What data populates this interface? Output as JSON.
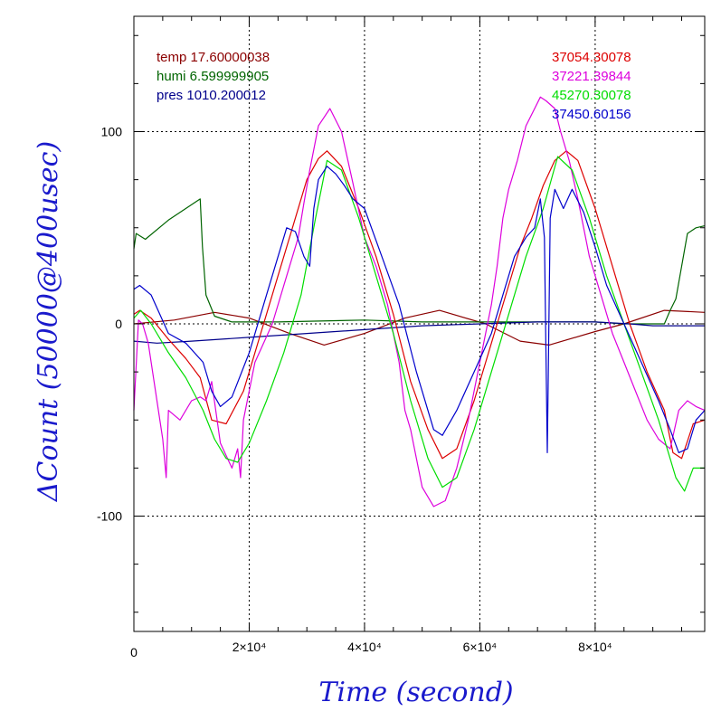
{
  "chart_data": {
    "type": "line",
    "xlabel": "Time (second)",
    "ylabel": "ΔCount (50000@400usec)",
    "xlim": [
      0,
      99000
    ],
    "ylim": [
      -160,
      160
    ],
    "grid": true,
    "x_ticks": [
      {
        "value": 0,
        "label": "0"
      },
      {
        "value": 20000,
        "label": "2×10⁴"
      },
      {
        "value": 40000,
        "label": "4×10⁴"
      },
      {
        "value": 60000,
        "label": "6×10⁴"
      },
      {
        "value": 80000,
        "label": "8×10⁴"
      }
    ],
    "y_ticks": [
      {
        "value": 100,
        "label": "100"
      },
      {
        "value": 0,
        "label": "0"
      },
      {
        "value": -100,
        "label": "-100"
      }
    ],
    "legend_left": [
      {
        "text": "temp 17.60000038",
        "color": "#8b0000"
      },
      {
        "text": "humi 6.599999905",
        "color": "#006400"
      },
      {
        "text": "pres 1010.200012",
        "color": "#00008b"
      }
    ],
    "legend_right": [
      {
        "text": "37054.30078",
        "color": "#dd0000"
      },
      {
        "text": "37221.39844",
        "color": "#dd00dd"
      },
      {
        "text": "45270.30078",
        "color": "#00dd00"
      },
      {
        "text": "37450.60156",
        "color": "#0000cc"
      }
    ],
    "series": [
      {
        "name": "temp 17.60000038",
        "color": "#8b0000",
        "x": [
          0,
          7000,
          14000,
          20000,
          27000,
          33000,
          40000,
          47000,
          53000,
          61000,
          67000,
          72000,
          80000,
          85000,
          92000,
          99000
        ],
        "y": [
          0,
          2,
          6,
          3,
          -5,
          -11,
          -5,
          3,
          7,
          0,
          -9,
          -11,
          -4,
          0,
          7,
          6
        ]
      },
      {
        "name": "humi 6.599999905",
        "color": "#006400",
        "x": [
          0,
          400,
          2000,
          6000,
          11500,
          11900,
          12500,
          14000,
          17000,
          25000,
          40000,
          50000,
          60000,
          70000,
          80000,
          85000,
          92000,
          93000,
          94000,
          95000,
          96000,
          97500,
          99000
        ],
        "y": [
          39,
          47,
          44,
          54,
          65,
          40,
          15,
          4,
          1,
          1,
          2,
          1,
          1,
          1,
          1,
          0,
          0,
          7,
          13,
          30,
          47,
          50,
          51
        ]
      },
      {
        "name": "pres 1010.200012",
        "color": "#00008b",
        "x": [
          0,
          4000,
          10000,
          20000,
          30000,
          40000,
          50000,
          60000,
          70000,
          80000,
          86000,
          90000,
          95000,
          99000
        ],
        "y": [
          -9,
          -10,
          -9,
          -7,
          -5,
          -3,
          -1,
          0,
          1,
          1,
          0,
          -1,
          -1,
          -1
        ]
      },
      {
        "name": "37054.30078",
        "color": "#dd0000",
        "x": [
          0,
          1000,
          3000,
          6000,
          9000,
          11500,
          13500,
          16000,
          19000,
          22000,
          25000,
          28000,
          30000,
          32000,
          33500,
          36000,
          39000,
          42000,
          45000,
          48000,
          51000,
          53500,
          56000,
          59000,
          62000,
          65000,
          67000,
          69000,
          71000,
          73000,
          75000,
          77000,
          80000,
          83000,
          86000,
          89000,
          92000,
          93500,
          95000,
          97000,
          99000
        ],
        "y": [
          5,
          7,
          3,
          -8,
          -18,
          -28,
          -50,
          -52,
          -35,
          -5,
          25,
          55,
          75,
          86,
          90,
          82,
          60,
          35,
          5,
          -30,
          -55,
          -70,
          -65,
          -40,
          -10,
          20,
          40,
          55,
          72,
          85,
          90,
          85,
          60,
          30,
          0,
          -25,
          -45,
          -67,
          -70,
          -52,
          -50
        ]
      },
      {
        "name": "37221.39844",
        "color": "#dd00dd",
        "x": [
          0,
          800,
          1500,
          2500,
          3500,
          5000,
          5600,
          6000,
          8000,
          10000,
          11500,
          12500,
          13500,
          15000,
          17000,
          18000,
          18500,
          19000,
          21000,
          24000,
          27000,
          28500,
          29500,
          30500,
          32000,
          34000,
          36000,
          38000,
          40000,
          42000,
          44000,
          46000,
          47000,
          48000,
          50000,
          52000,
          54000,
          56000,
          58000,
          60000,
          62000,
          63000,
          64000,
          65000,
          66500,
          68000,
          69500,
          70500,
          71500,
          73000,
          74000,
          75500,
          77000,
          79000,
          81000,
          83000,
          85000,
          87000,
          89000,
          91000,
          93000,
          94500,
          96000,
          97500,
          99000
        ],
        "y": [
          -45,
          2,
          0,
          -10,
          -30,
          -60,
          -80,
          -45,
          -50,
          -40,
          -38,
          -40,
          -30,
          -62,
          -75,
          -65,
          -80,
          -50,
          -20,
          0,
          30,
          45,
          63,
          80,
          103,
          112,
          100,
          73,
          45,
          30,
          10,
          -20,
          -45,
          -55,
          -85,
          -95,
          -92,
          -75,
          -50,
          -20,
          10,
          30,
          55,
          70,
          85,
          103,
          112,
          118,
          116,
          112,
          100,
          85,
          65,
          35,
          15,
          -5,
          -20,
          -35,
          -50,
          -60,
          -65,
          -45,
          -40,
          -43,
          -45
        ]
      },
      {
        "name": "45270.30078",
        "color": "#00dd00",
        "x": [
          0,
          1200,
          3000,
          6000,
          9000,
          12000,
          14000,
          16000,
          18000,
          20000,
          23000,
          26000,
          29000,
          31500,
          33500,
          36000,
          39000,
          42000,
          45000,
          48000,
          51000,
          53500,
          56000,
          59000,
          62000,
          65000,
          68000,
          71000,
          73500,
          76000,
          79000,
          82000,
          85000,
          88000,
          91000,
          94000,
          95500,
          97000,
          99000
        ],
        "y": [
          3,
          7,
          0,
          -15,
          -28,
          -45,
          -60,
          -70,
          -72,
          -62,
          -40,
          -15,
          15,
          55,
          85,
          80,
          55,
          25,
          -5,
          -40,
          -70,
          -85,
          -80,
          -55,
          -25,
          5,
          35,
          60,
          87,
          80,
          55,
          25,
          0,
          -25,
          -50,
          -80,
          -87,
          -75,
          -75
        ]
      },
      {
        "name": "37450.60156",
        "color": "#0000cc",
        "x": [
          0,
          1000,
          3000,
          6000,
          9000,
          12000,
          13500,
          15000,
          17000,
          20000,
          23000,
          26500,
          28000,
          29500,
          30500,
          31200,
          32000,
          33500,
          35000,
          36500,
          38000,
          40000,
          43000,
          46000,
          49000,
          52000,
          53500,
          56000,
          59000,
          62000,
          64000,
          66000,
          68000,
          69500,
          70500,
          71200,
          71700,
          72200,
          73000,
          74500,
          76000,
          78000,
          80000,
          82000,
          85000,
          88000,
          91000,
          93000,
          94500,
          96000,
          97500,
          99000
        ],
        "y": [
          18,
          20,
          15,
          -5,
          -10,
          -20,
          -35,
          -43,
          -38,
          -15,
          15,
          50,
          48,
          35,
          30,
          60,
          75,
          82,
          78,
          72,
          65,
          60,
          35,
          10,
          -25,
          -55,
          -58,
          -45,
          -25,
          -5,
          15,
          35,
          45,
          50,
          65,
          45,
          -67,
          55,
          70,
          60,
          70,
          58,
          40,
          20,
          0,
          -20,
          -40,
          -55,
          -67,
          -65,
          -50,
          -45
        ]
      }
    ]
  }
}
